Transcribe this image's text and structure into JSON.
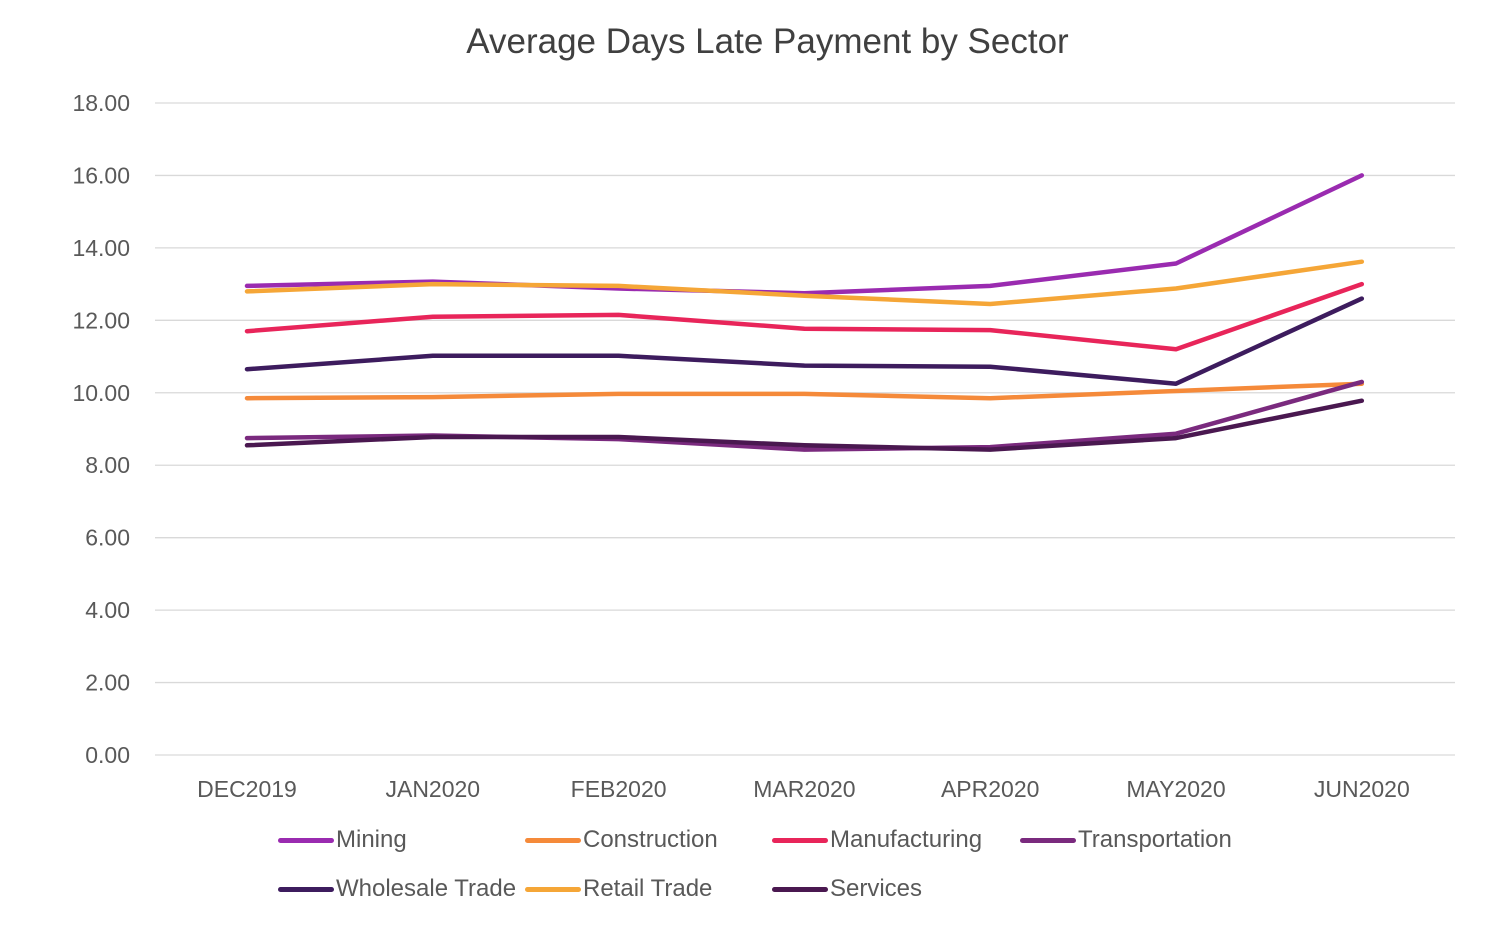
{
  "chart_data": {
    "type": "line",
    "title": "Average Days Late Payment by Sector",
    "xlabel": "",
    "ylabel": "",
    "categories": [
      "DEC2019",
      "JAN2020",
      "FEB2020",
      "MAR2020",
      "APR2020",
      "MAY2020",
      "JUN2020"
    ],
    "ylim": [
      0,
      18
    ],
    "yticks": [
      "0.00",
      "2.00",
      "4.00",
      "6.00",
      "8.00",
      "10.00",
      "12.00",
      "14.00",
      "16.00",
      "18.00"
    ],
    "grid": true,
    "legend_position": "bottom",
    "series": [
      {
        "name": "Mining",
        "color": "#9a2bb0",
        "values": [
          12.95,
          13.07,
          12.88,
          12.75,
          12.95,
          13.57,
          16.0
        ]
      },
      {
        "name": "Construction",
        "color": "#f58a3a",
        "values": [
          9.85,
          9.88,
          9.97,
          9.97,
          9.85,
          10.05,
          10.25
        ]
      },
      {
        "name": "Manufacturing",
        "color": "#e8255a",
        "values": [
          11.7,
          12.1,
          12.15,
          11.77,
          11.73,
          11.2,
          13.0
        ]
      },
      {
        "name": "Transportation",
        "color": "#7a2a7e",
        "values": [
          8.75,
          8.82,
          8.72,
          8.43,
          8.5,
          8.87,
          10.3
        ]
      },
      {
        "name": "Wholesale Trade",
        "color": "#3d1c5e",
        "values": [
          10.65,
          11.02,
          11.02,
          10.75,
          10.72,
          10.25,
          12.6
        ]
      },
      {
        "name": "Retail Trade",
        "color": "#f5a637",
        "values": [
          12.8,
          13.0,
          12.95,
          12.68,
          12.45,
          12.88,
          13.62
        ]
      },
      {
        "name": "Services",
        "color": "#4a1850",
        "values": [
          8.55,
          8.78,
          8.78,
          8.55,
          8.43,
          8.75,
          9.78
        ]
      }
    ]
  }
}
